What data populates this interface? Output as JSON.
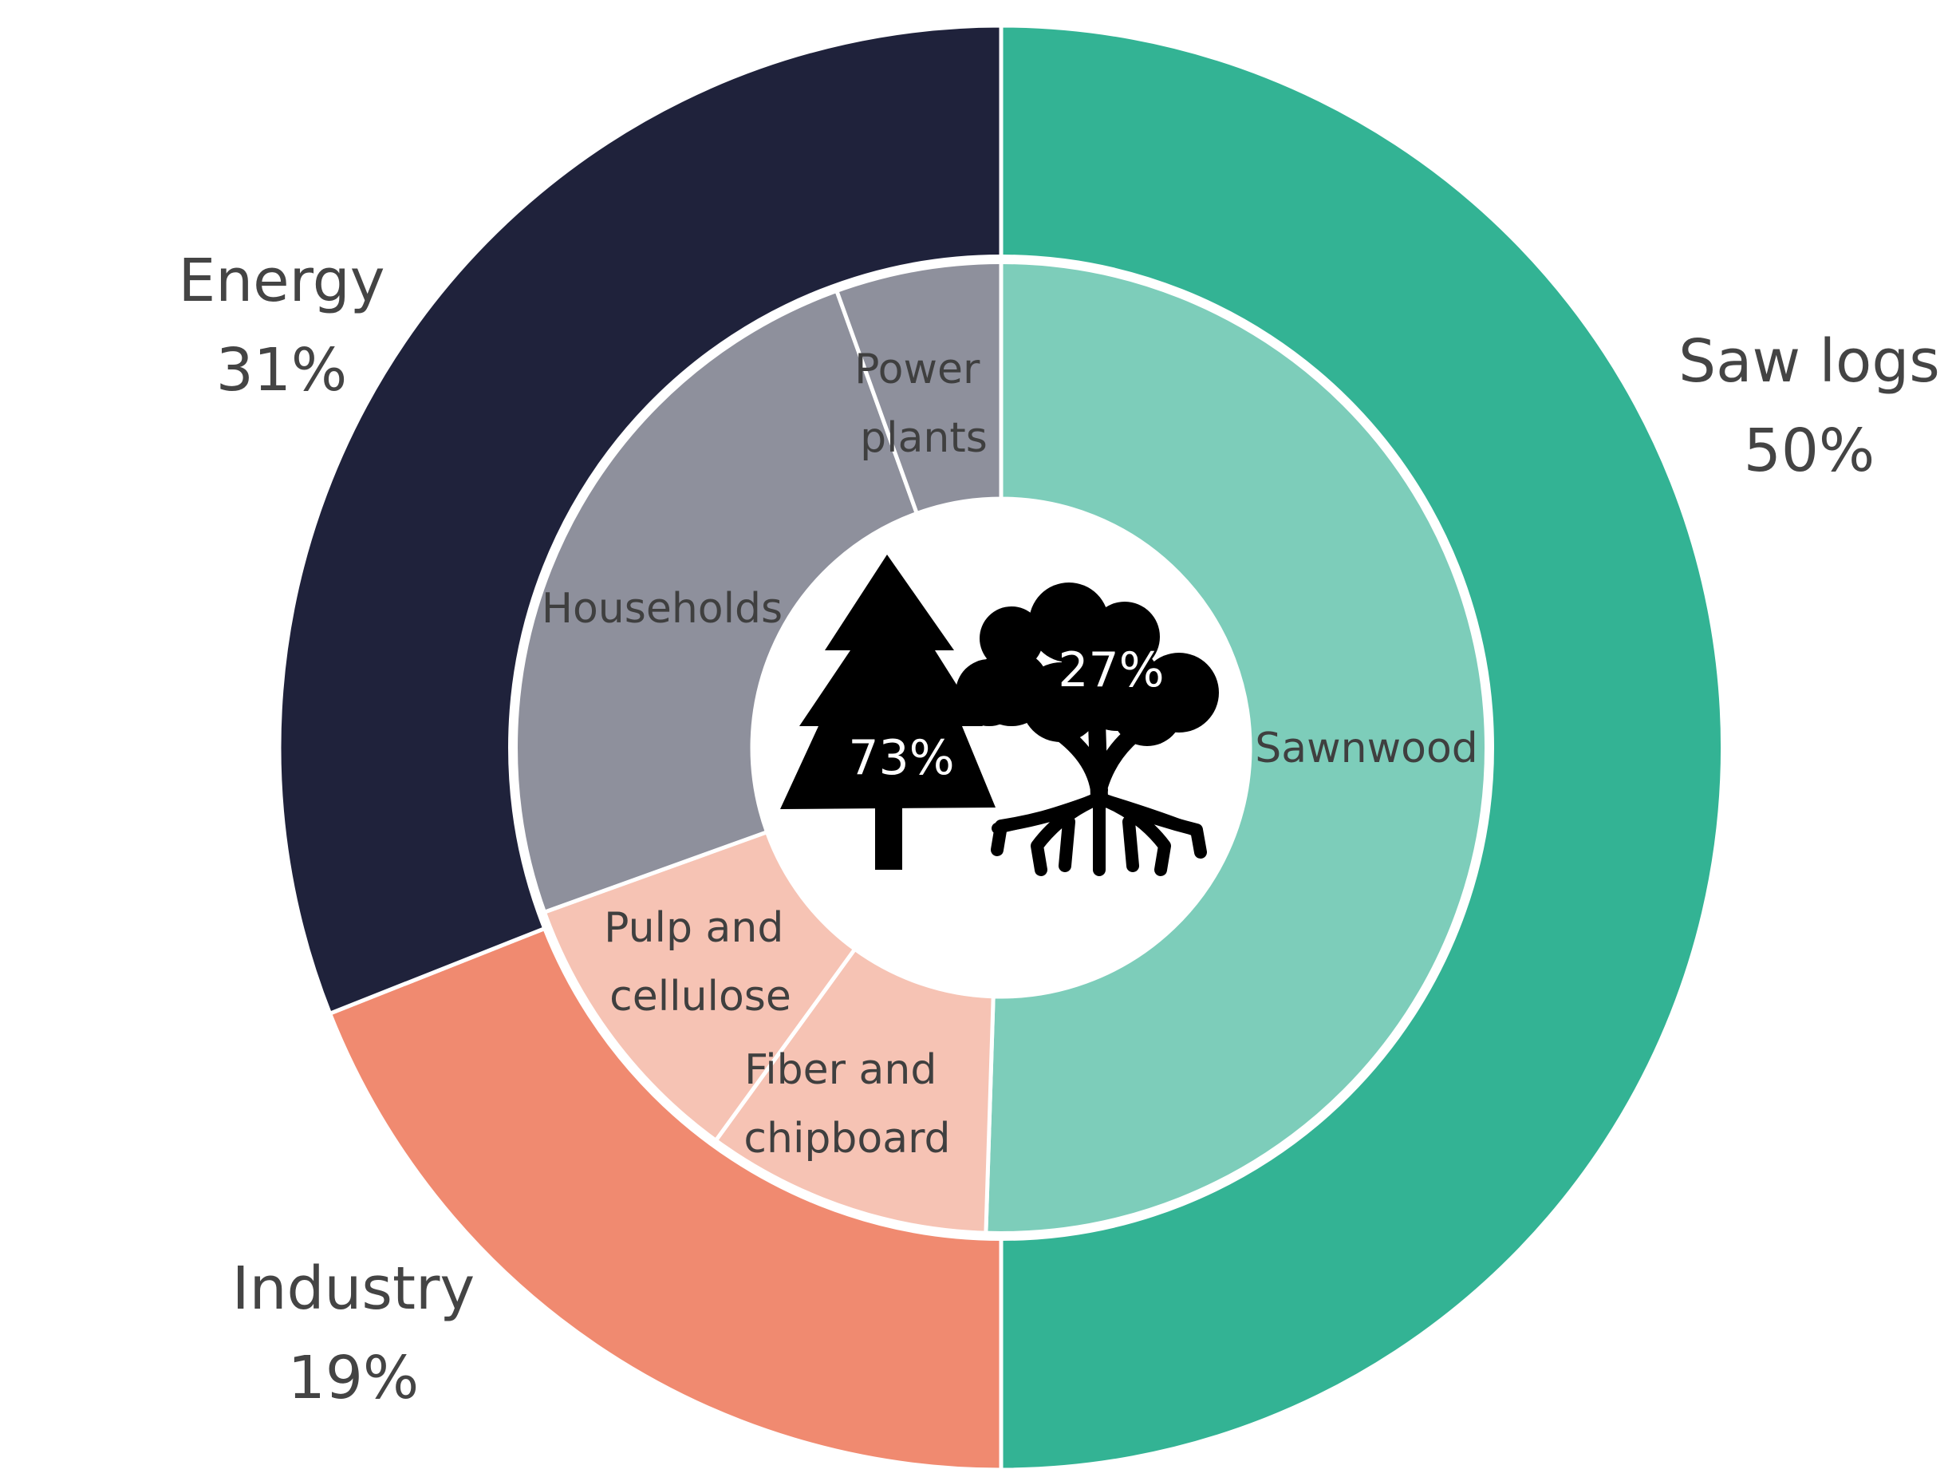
{
  "chart_data": {
    "type": "pie",
    "subtype": "nested-donut",
    "outer_ring": [
      {
        "label": "Saw logs",
        "value_label": "50%",
        "value": 50,
        "color": "#33B394"
      },
      {
        "label": "Industry",
        "value_label": "19%",
        "value": 19,
        "color": "#F08A70"
      },
      {
        "label": "Energy",
        "value_label": "31%",
        "value": 31,
        "color": "#1F223B"
      }
    ],
    "inner_ring": [
      {
        "label": "Sawnwood",
        "value": 50.5,
        "color": "#7DCDBA"
      },
      {
        "label": "Fiber and chipboard",
        "value": 9.5,
        "color": "#F6C3B4"
      },
      {
        "label": "Pulp and cellulose",
        "value": 9.5,
        "color": "#F6C3B4"
      },
      {
        "label": "Households",
        "value": 25,
        "color": "#8E909C"
      },
      {
        "label": "Power plants",
        "value": 5.5,
        "color": "#8E909C"
      }
    ],
    "center": {
      "softwood": {
        "icon": "conifer-tree-icon",
        "value_label": "73%",
        "value": 73
      },
      "hardwood": {
        "icon": "deciduous-tree-icon",
        "value_label": "27%",
        "value": 27
      }
    }
  }
}
